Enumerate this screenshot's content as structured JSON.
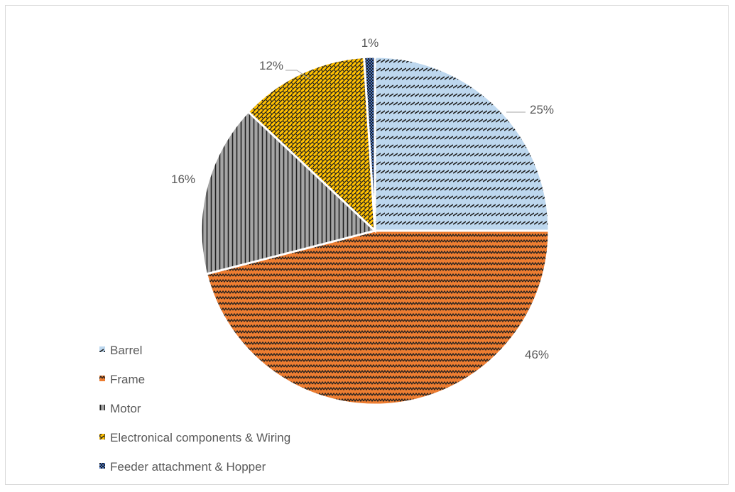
{
  "chart_data": {
    "type": "pie",
    "title": "",
    "series": [
      {
        "values": [
          25,
          46,
          16,
          12,
          1
        ]
      }
    ],
    "categories": [
      "Barrel",
      "Frame",
      "Motor",
      "Electronical components & Wiring",
      "Feeder attachment & Hopper"
    ],
    "value_labels": [
      "25%",
      "46%",
      "16%",
      "12%",
      "1%"
    ],
    "colors": [
      "#bdd7ee",
      "#ed7d31",
      "#a5a5a5",
      "#ffc000",
      "#4472c4"
    ],
    "pattern_ink": [
      "#1f1f1f",
      "#1f1f1f",
      "#1f1f1f",
      "#1f1f1f",
      "#1f1f1f"
    ],
    "legend_position": "left-bottom"
  }
}
